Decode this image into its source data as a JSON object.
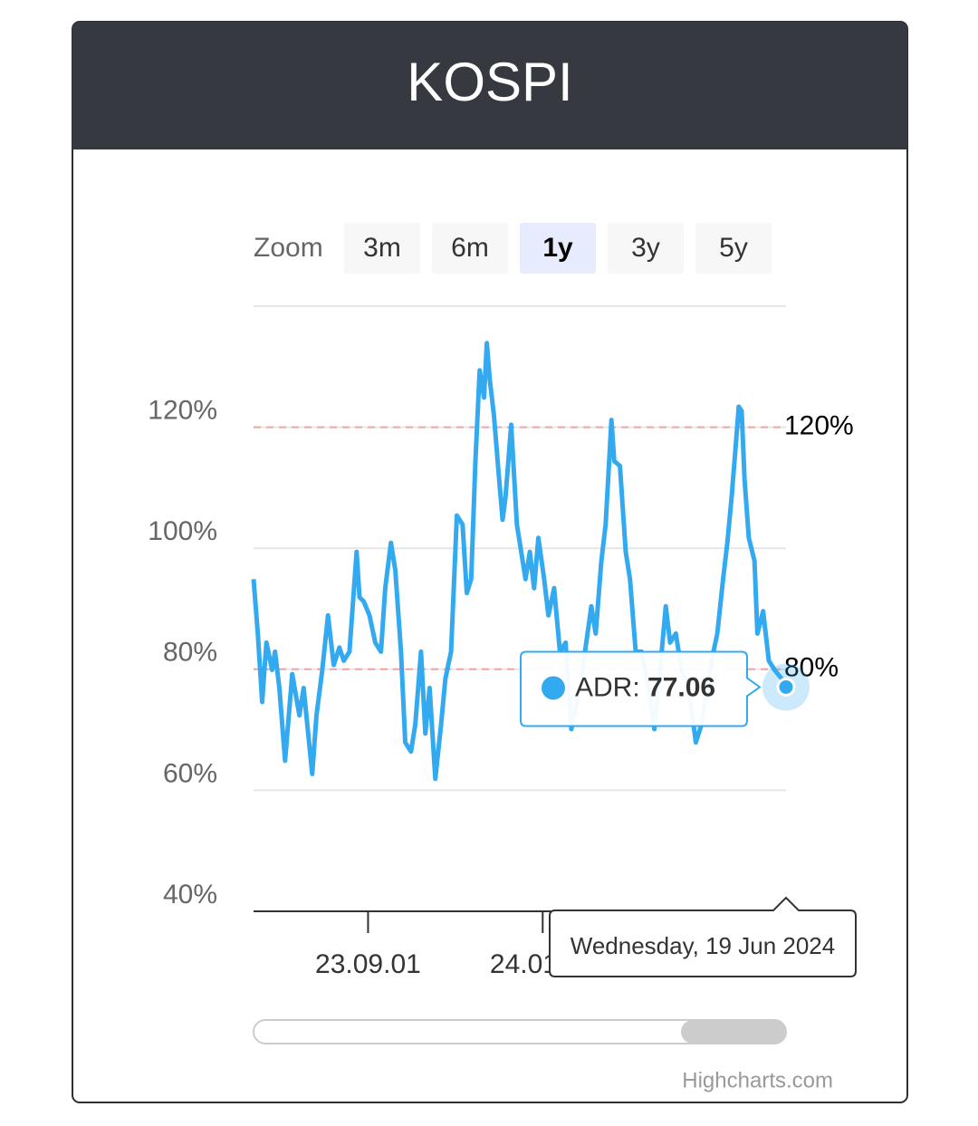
{
  "chart_data": {
    "type": "line",
    "title": "KOSPI",
    "range_selector": {
      "label": "Zoom",
      "buttons": [
        "3m",
        "6m",
        "1y",
        "3y",
        "5y"
      ],
      "selected": 2
    },
    "x": [
      "2023-06-13",
      "2023-06-16",
      "2023-06-19",
      "2023-06-22",
      "2023-06-26",
      "2023-06-28",
      "2023-07-01",
      "2023-07-05",
      "2023-07-10",
      "2023-07-15",
      "2023-07-18",
      "2023-07-24",
      "2023-07-27",
      "2023-07-31",
      "2023-08-04",
      "2023-08-08",
      "2023-08-12",
      "2023-08-15",
      "2023-08-19",
      "2023-08-24",
      "2023-08-26",
      "2023-08-29",
      "2023-09-02",
      "2023-09-06",
      "2023-09-10",
      "2023-09-13",
      "2023-09-17",
      "2023-09-20",
      "2023-09-24",
      "2023-09-27",
      "2023-10-01",
      "2023-10-04",
      "2023-10-08",
      "2023-10-11",
      "2023-10-14",
      "2023-10-18",
      "2023-10-22",
      "2023-10-25",
      "2023-10-29",
      "2023-11-02",
      "2023-11-06",
      "2023-11-09",
      "2023-11-12",
      "2023-11-15",
      "2023-11-18",
      "2023-11-21",
      "2023-11-23",
      "2023-11-25",
      "2023-11-28",
      "2023-12-01",
      "2023-12-04",
      "2023-12-06",
      "2023-12-10",
      "2023-12-14",
      "2023-12-17",
      "2023-12-20",
      "2023-12-23",
      "2023-12-26",
      "2023-12-29",
      "2024-01-02",
      "2024-01-05",
      "2024-01-09",
      "2024-01-13",
      "2024-01-17",
      "2024-01-21",
      "2024-01-27",
      "2024-02-04",
      "2024-02-07",
      "2024-02-11",
      "2024-02-14",
      "2024-02-18",
      "2024-02-20",
      "2024-02-24",
      "2024-02-28",
      "2024-03-02",
      "2024-03-06",
      "2024-03-10",
      "2024-03-15",
      "2024-03-19",
      "2024-03-23",
      "2024-03-27",
      "2024-03-30",
      "2024-04-03",
      "2024-04-07",
      "2024-04-12",
      "2024-04-17",
      "2024-04-21",
      "2024-04-25",
      "2024-04-28",
      "2024-05-02",
      "2024-05-06",
      "2024-05-09",
      "2024-05-12",
      "2024-05-15",
      "2024-05-17",
      "2024-05-19",
      "2024-05-21",
      "2024-05-24",
      "2024-05-28",
      "2024-05-30",
      "2024-06-03",
      "2024-06-07",
      "2024-06-11",
      "2024-06-16",
      "2024-06-19"
    ],
    "series": [
      {
        "name": "ADR",
        "color": "#33aaf0",
        "values": [
          94.9,
          85.9,
          74.6,
          84.4,
          79.9,
          82.9,
          76.9,
          64.9,
          79.2,
          72.4,
          76.9,
          62.7,
          72.4,
          79.9,
          88.9,
          80.7,
          83.6,
          81.4,
          82.9,
          99.4,
          91.9,
          91.2,
          88.9,
          84.4,
          82.9,
          93.4,
          100.9,
          96.4,
          82.9,
          67.9,
          66.4,
          70.9,
          82.9,
          69.4,
          76.9,
          61.9,
          70.9,
          78.4,
          82.9,
          105.4,
          103.9,
          92.6,
          94.9,
          114.4,
          129.4,
          124.9,
          133.9,
          127.9,
          121.9,
          113.0,
          104.7,
          108.4,
          120.4,
          103.9,
          99.4,
          94.9,
          99.4,
          93.4,
          101.7,
          94.9,
          88.9,
          93.4,
          82.9,
          84.4,
          70.1,
          76.9,
          90.4,
          85.9,
          97.9,
          103.9,
          121.2,
          114.4,
          113.6,
          99.4,
          94.9,
          82.9,
          82.9,
          76.9,
          70.1,
          79.9,
          90.4,
          84.4,
          85.9,
          79.9,
          76.9,
          67.9,
          70.9,
          76.9,
          81.4,
          85.9,
          94.9,
          100.9,
          108.4,
          117.4,
          123.4,
          122.7,
          111.4,
          101.7,
          97.9,
          85.9,
          89.6,
          81.4,
          79.9,
          78.4,
          77.06
        ]
      }
    ],
    "xlim": [
      "2023-06-13",
      "2024-06-19"
    ],
    "xticks": [
      {
        "value": "2023-09-01",
        "label": "23.09.01"
      },
      {
        "value": "2024-01-01",
        "label": "24.01.01"
      }
    ],
    "ylim": [
      40,
      140
    ],
    "yticks": [
      {
        "value": 40,
        "label": "40%"
      },
      {
        "value": 60,
        "label": "60%"
      },
      {
        "value": 80,
        "label": "80%"
      },
      {
        "value": 100,
        "label": "100%"
      },
      {
        "value": 120,
        "label": "120%"
      }
    ],
    "grid": true,
    "plot_lines": [
      {
        "value": 80,
        "label": "80%",
        "color": "#f2a3a3"
      },
      {
        "value": 120,
        "label": "120%",
        "color": "#f2a3a3"
      }
    ],
    "tooltip": {
      "date_label": "Wednesday, 19 Jun 2024"
    },
    "credits": "Highcharts.com"
  }
}
